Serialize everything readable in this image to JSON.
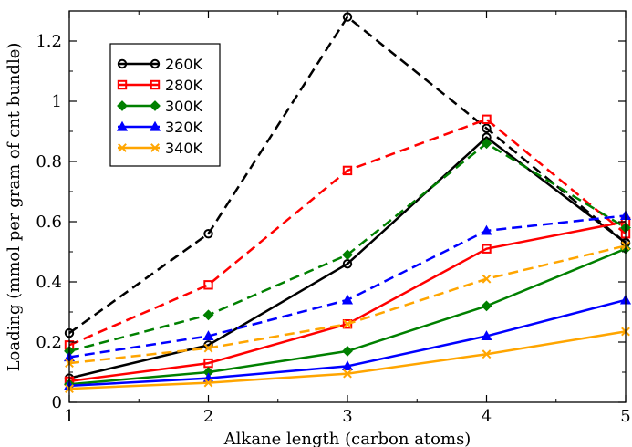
{
  "chart_data": {
    "type": "line",
    "xlabel": "Alkane length (carbon atoms)",
    "ylabel": "Loading (mmol per gram of cnt bundle)",
    "xlim": [
      1,
      5
    ],
    "ylim": [
      0,
      1.3
    ],
    "x_ticks": [
      "1",
      "2",
      "3",
      "4",
      "5"
    ],
    "y_ticks": [
      "0",
      "0.2",
      "0.4",
      "0.6",
      "0.8",
      "1",
      "1.2"
    ],
    "grid": false,
    "legend_position": "top-left",
    "x": [
      1,
      2,
      3,
      4,
      5
    ],
    "series": [
      {
        "name": "260K",
        "color": "#000000",
        "marker": "circle",
        "style": "solid",
        "values": [
          0.08,
          0.19,
          0.46,
          0.88,
          0.53
        ]
      },
      {
        "name": "",
        "color": "#000000",
        "marker": "circle",
        "style": "dashed",
        "values": [
          0.23,
          0.56,
          1.28,
          0.91,
          0.53
        ]
      },
      {
        "name": "280K",
        "color": "#ff0000",
        "marker": "square",
        "style": "solid",
        "values": [
          0.07,
          0.13,
          0.26,
          0.51,
          0.6
        ]
      },
      {
        "name": "",
        "color": "#ff0000",
        "marker": "square",
        "style": "dashed",
        "values": [
          0.19,
          0.39,
          0.77,
          0.94,
          0.56
        ]
      },
      {
        "name": "300K",
        "color": "#008000",
        "marker": "diamond",
        "style": "solid",
        "values": [
          0.06,
          0.1,
          0.17,
          0.32,
          0.51
        ]
      },
      {
        "name": "",
        "color": "#008000",
        "marker": "diamond",
        "style": "dashed",
        "values": [
          0.17,
          0.29,
          0.49,
          0.86,
          0.58
        ]
      },
      {
        "name": "320K",
        "color": "#0000ff",
        "marker": "triangle",
        "style": "solid",
        "values": [
          0.055,
          0.08,
          0.12,
          0.22,
          0.34
        ]
      },
      {
        "name": "",
        "color": "#0000ff",
        "marker": "triangle",
        "style": "dashed",
        "values": [
          0.15,
          0.22,
          0.34,
          0.57,
          0.62
        ]
      },
      {
        "name": "340K",
        "color": "#ffa500",
        "marker": "x",
        "style": "solid",
        "values": [
          0.045,
          0.065,
          0.095,
          0.16,
          0.235
        ]
      },
      {
        "name": "",
        "color": "#ffa500",
        "marker": "x",
        "style": "dashed",
        "values": [
          0.13,
          0.18,
          0.26,
          0.41,
          0.52
        ]
      }
    ]
  }
}
